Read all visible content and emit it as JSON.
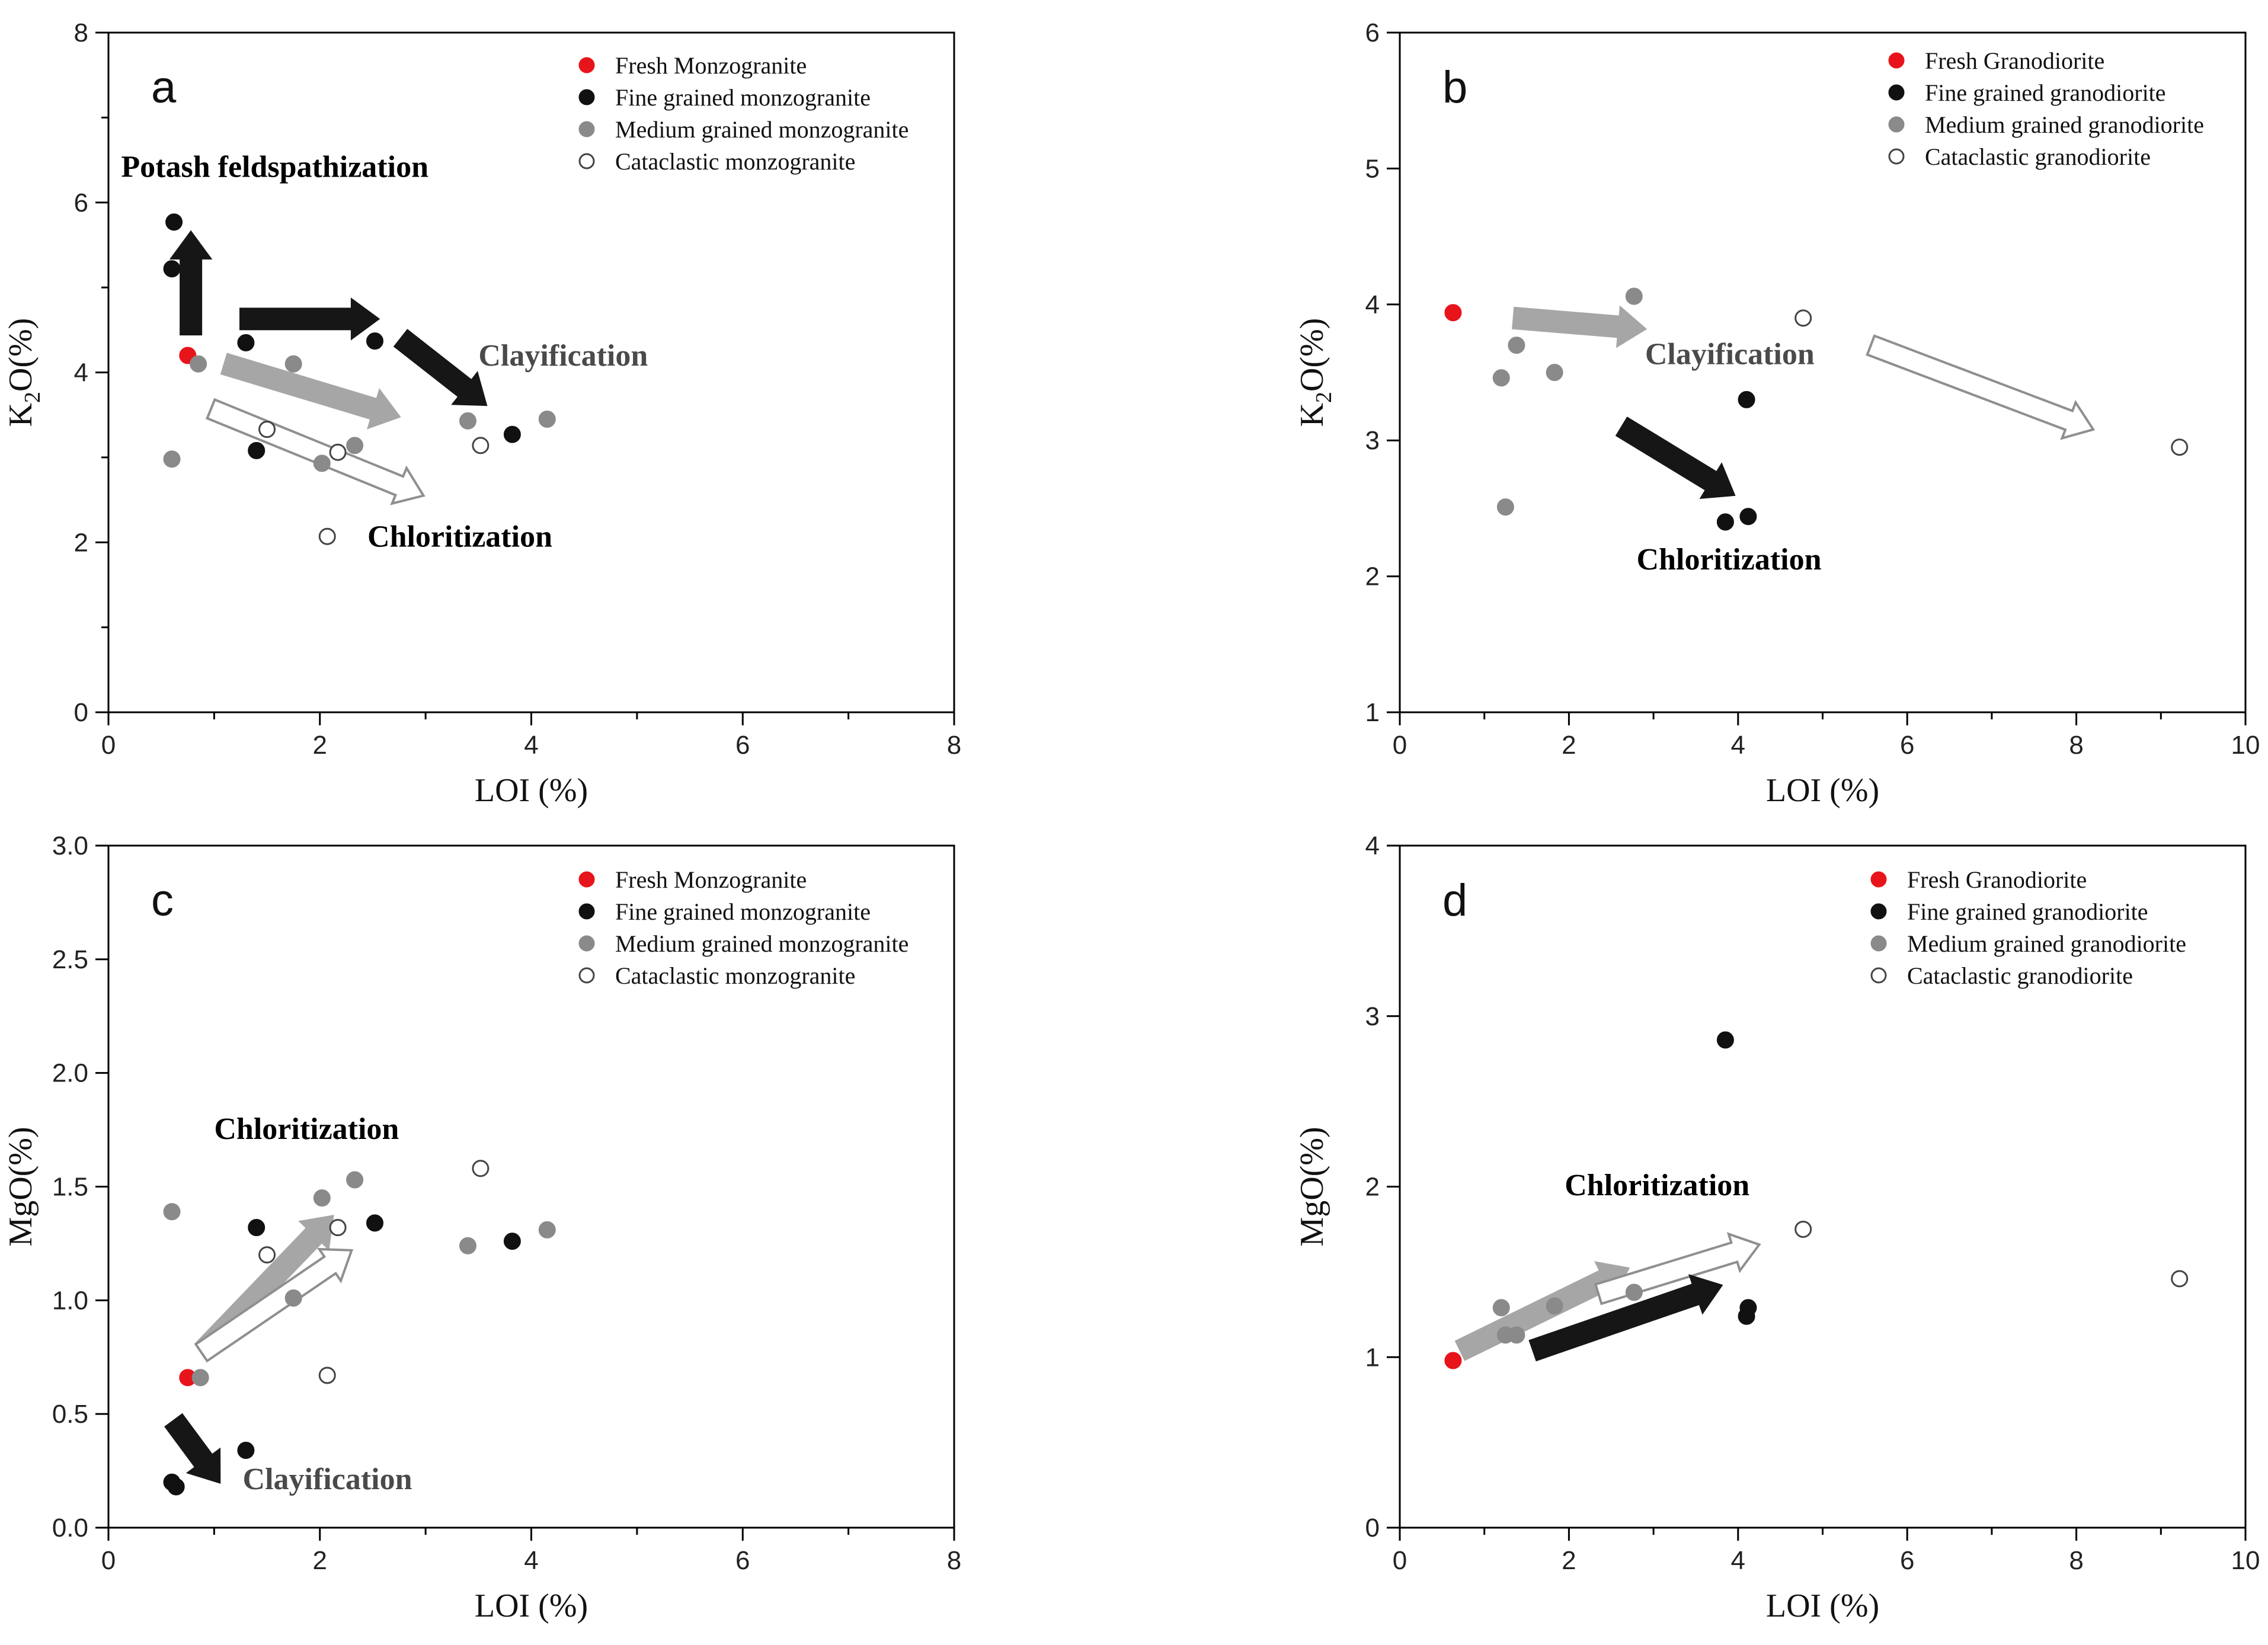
{
  "chart_data": [
    {
      "panel_label": "a",
      "type": "scatter",
      "xlabel": "LOI (%)",
      "ylabel_main": "K",
      "ylabel_sub": "2",
      "ylabel_rest": "O(%)",
      "xlim": [
        0,
        8
      ],
      "ylim": [
        0,
        8
      ],
      "xticks": [
        0,
        2,
        4,
        6,
        8
      ],
      "yticks": [
        0,
        2,
        4,
        6,
        8
      ],
      "yminor": [
        1,
        3,
        5,
        7
      ],
      "legend_position": "top-right",
      "series": [
        {
          "name": "Fresh Monzogranite",
          "style": "red",
          "points": [
            [
              0.75,
              4.2
            ]
          ]
        },
        {
          "name": "Fine grained monzogranite",
          "style": "black",
          "points": [
            [
              0.62,
              5.77
            ],
            [
              0.6,
              5.22
            ],
            [
              1.3,
              4.35
            ],
            [
              2.52,
              4.37
            ],
            [
              1.4,
              3.08
            ],
            [
              3.82,
              3.27
            ]
          ]
        },
        {
          "name": "Medium grained monzogranite",
          "style": "gray",
          "points": [
            [
              0.85,
              4.1
            ],
            [
              1.75,
              4.1
            ],
            [
              0.6,
              2.98
            ],
            [
              2.02,
              2.93
            ],
            [
              2.33,
              3.14
            ],
            [
              3.4,
              3.43
            ],
            [
              4.15,
              3.45
            ]
          ]
        },
        {
          "name": "Cataclastic monzogranite",
          "style": "open",
          "points": [
            [
              1.5,
              3.33
            ],
            [
              2.17,
              3.06
            ],
            [
              3.52,
              3.14
            ],
            [
              2.07,
              2.07
            ]
          ]
        }
      ],
      "annotations": [
        {
          "text": "Potash feldspathization",
          "x": 0.12,
          "y": 6.3,
          "color": "black"
        },
        {
          "text": "Clayification",
          "x": 3.5,
          "y": 4.08,
          "color": "#4a4a4a"
        },
        {
          "text": "Chloritization",
          "x": 2.45,
          "y": 1.95,
          "color": "black"
        }
      ],
      "arrows": [
        {
          "from": [
            0.78,
            4.45
          ],
          "to": [
            0.78,
            5.65
          ],
          "style": "black"
        },
        {
          "from": [
            1.25,
            4.63
          ],
          "to": [
            2.55,
            4.63
          ],
          "style": "black"
        },
        {
          "from": [
            2.77,
            4.4
          ],
          "to": [
            3.57,
            3.62
          ],
          "style": "black"
        },
        {
          "from": [
            1.1,
            4.1
          ],
          "to": [
            2.75,
            3.48
          ],
          "style": "gray"
        },
        {
          "from": [
            0.97,
            3.57
          ],
          "to": [
            2.98,
            2.55
          ],
          "style": "open"
        }
      ]
    },
    {
      "panel_label": "b",
      "type": "scatter",
      "xlabel": "LOI (%)",
      "ylabel_main": "K",
      "ylabel_sub": "2",
      "ylabel_rest": "O(%)",
      "xlim": [
        0,
        10
      ],
      "ylim": [
        1,
        6
      ],
      "xticks": [
        0,
        2,
        4,
        6,
        8,
        10
      ],
      "yticks": [
        1,
        2,
        3,
        4,
        5,
        6
      ],
      "yminor": [],
      "legend_position": "top-right",
      "series": [
        {
          "name": "Fresh Granodiorite",
          "style": "red",
          "points": [
            [
              0.63,
              3.94
            ]
          ]
        },
        {
          "name": "Fine grained granodiorite",
          "style": "black",
          "points": [
            [
              4.1,
              3.3
            ],
            [
              3.85,
              2.4
            ],
            [
              4.12,
              2.44
            ]
          ]
        },
        {
          "name": "Medium grained granodiorite",
          "style": "gray",
          "points": [
            [
              2.77,
              4.06
            ],
            [
              1.38,
              3.7
            ],
            [
              1.2,
              3.46
            ],
            [
              1.83,
              3.5
            ],
            [
              1.25,
              2.51
            ]
          ]
        },
        {
          "name": "Cataclastic granodiorite",
          "style": "open",
          "points": [
            [
              4.77,
              3.9
            ],
            [
              9.22,
              2.95
            ]
          ]
        }
      ],
      "annotations": [
        {
          "text": "Clayification",
          "x": 2.9,
          "y": 3.56,
          "color": "#4a4a4a"
        },
        {
          "text": "Chloritization",
          "x": 2.8,
          "y": 2.05,
          "color": "black"
        }
      ],
      "arrows": [
        {
          "from": [
            1.35,
            3.9
          ],
          "to": [
            2.9,
            3.82
          ],
          "style": "gray"
        },
        {
          "from": [
            2.63,
            3.1
          ],
          "to": [
            3.95,
            2.6
          ],
          "style": "black"
        },
        {
          "from": [
            5.57,
            3.7
          ],
          "to": [
            8.2,
            3.08
          ],
          "style": "open"
        }
      ]
    },
    {
      "panel_label": "c",
      "type": "scatter",
      "xlabel": "LOI (%)",
      "ylabel_main": "MgO(%)",
      "ylabel_sub": "",
      "ylabel_rest": "",
      "xlim": [
        0,
        8
      ],
      "ylim": [
        0,
        3
      ],
      "xticks": [
        0,
        2,
        4,
        6,
        8
      ],
      "yticks": [
        0.0,
        0.5,
        1.0,
        1.5,
        2.0,
        2.5,
        3.0
      ],
      "yminor": [],
      "legend_position": "top-right",
      "series": [
        {
          "name": "Fresh Monzogranite",
          "style": "red",
          "points": [
            [
              0.75,
              0.66
            ]
          ]
        },
        {
          "name": "Fine grained monzogranite",
          "style": "black",
          "points": [
            [
              0.6,
              0.2
            ],
            [
              0.64,
              0.18
            ],
            [
              1.3,
              0.34
            ],
            [
              1.4,
              1.32
            ],
            [
              2.52,
              1.34
            ],
            [
              3.82,
              1.26
            ]
          ]
        },
        {
          "name": "Medium grained monzogranite",
          "style": "gray",
          "points": [
            [
              0.6,
              1.39
            ],
            [
              0.87,
              0.66
            ],
            [
              2.02,
              1.45
            ],
            [
              2.33,
              1.53
            ],
            [
              1.75,
              1.01
            ],
            [
              3.4,
              1.24
            ],
            [
              4.15,
              1.31
            ]
          ]
        },
        {
          "name": "Cataclastic monzogranite",
          "style": "open",
          "points": [
            [
              1.5,
              1.2
            ],
            [
              2.17,
              1.32
            ],
            [
              3.52,
              1.58
            ],
            [
              2.07,
              0.67
            ]
          ]
        }
      ],
      "annotations": [
        {
          "text": "Chloritization",
          "x": 1.0,
          "y": 1.71,
          "color": "black"
        },
        {
          "text": "Clayification",
          "x": 1.27,
          "y": 0.17,
          "color": "#4a4a4a"
        }
      ],
      "arrows": [
        {
          "from": [
            0.9,
            0.78
          ],
          "to": [
            2.12,
            1.37
          ],
          "style": "gray"
        },
        {
          "from": [
            0.88,
            0.77
          ],
          "to": [
            2.3,
            1.22
          ],
          "style": "open"
        },
        {
          "from": [
            0.62,
            0.47
          ],
          "to": [
            1.05,
            0.2
          ],
          "style": "black"
        }
      ]
    },
    {
      "panel_label": "d",
      "type": "scatter",
      "xlabel": "LOI (%)",
      "ylabel_main": "MgO(%)",
      "ylabel_sub": "",
      "ylabel_rest": "",
      "xlim": [
        0,
        10
      ],
      "ylim": [
        0,
        4
      ],
      "xticks": [
        0,
        2,
        4,
        6,
        8,
        10
      ],
      "yticks": [
        0,
        1,
        2,
        3,
        4
      ],
      "yminor": [],
      "legend_position": "top-right",
      "series": [
        {
          "name": "Fresh Granodiorite",
          "style": "red",
          "points": [
            [
              0.63,
              0.98
            ]
          ]
        },
        {
          "name": "Fine grained granodiorite",
          "style": "black",
          "points": [
            [
              3.85,
              2.86
            ],
            [
              4.12,
              1.29
            ],
            [
              4.1,
              1.24
            ]
          ]
        },
        {
          "name": "Medium grained granodiorite",
          "style": "gray",
          "points": [
            [
              1.2,
              1.29
            ],
            [
              1.83,
              1.3
            ],
            [
              2.77,
              1.38
            ],
            [
              1.25,
              1.13
            ],
            [
              1.38,
              1.13
            ]
          ]
        },
        {
          "name": "Cataclastic granodiorite",
          "style": "open",
          "points": [
            [
              4.77,
              1.75
            ],
            [
              9.22,
              1.46
            ]
          ]
        }
      ],
      "annotations": [
        {
          "text": "Chloritization",
          "x": 1.95,
          "y": 1.95,
          "color": "black"
        }
      ],
      "arrows": [
        {
          "from": [
            0.72,
            1.04
          ],
          "to": [
            2.7,
            1.52
          ],
          "style": "gray"
        },
        {
          "from": [
            2.35,
            1.37
          ],
          "to": [
            4.25,
            1.66
          ],
          "style": "open"
        },
        {
          "from": [
            1.58,
            1.04
          ],
          "to": [
            3.8,
            1.42
          ],
          "style": "black"
        }
      ]
    }
  ]
}
